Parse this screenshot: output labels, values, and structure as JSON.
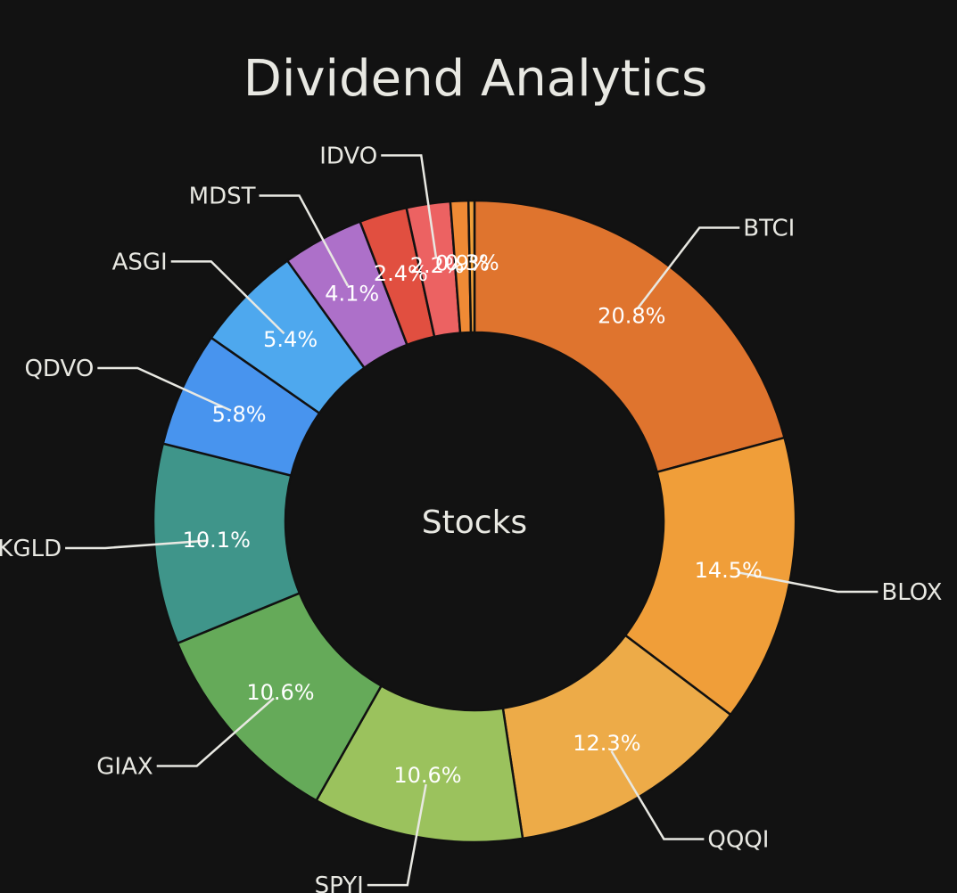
{
  "chart_data": {
    "type": "pie",
    "title": "Dividend Analytics",
    "center_label": "Stocks",
    "legend": "none",
    "start_angle_deg": 0,
    "direction": "clockwise",
    "slices": [
      {
        "name": "BTCI",
        "value": 20.8,
        "label": "20.8%",
        "color": "#df742e"
      },
      {
        "name": "BLOX",
        "value": 14.5,
        "label": "14.5%",
        "color": "#f09e39"
      },
      {
        "name": "QQQI",
        "value": 12.3,
        "label": "12.3%",
        "color": "#edab48"
      },
      {
        "name": "SPYI",
        "value": 10.6,
        "label": "10.6%",
        "color": "#9bc25d"
      },
      {
        "name": "GIAX",
        "value": 10.6,
        "label": "10.6%",
        "color": "#65aa59"
      },
      {
        "name": "KGLD",
        "value": 10.1,
        "label": "10.1%",
        "color": "#3f958a"
      },
      {
        "name": "QDVO",
        "value": 5.8,
        "label": "5.8%",
        "color": "#4894ee"
      },
      {
        "name": "ASGI",
        "value": 5.4,
        "label": "5.4%",
        "color": "#4ea8ee"
      },
      {
        "name": "MDST",
        "value": 4.1,
        "label": "4.1%",
        "color": "#ad70c9"
      },
      {
        "name": "",
        "value": 2.4,
        "label": "2.4%",
        "color": "#e14f40"
      },
      {
        "name": "IDVO",
        "value": 2.2,
        "label": "2.2%",
        "color": "#ec6262"
      },
      {
        "name": "",
        "value": 0.9,
        "label": "0.9%",
        "color": "#ef8a35"
      },
      {
        "name": "",
        "value": 0.3,
        "label": "0.3%",
        "color": "#f0a03a"
      }
    ]
  }
}
